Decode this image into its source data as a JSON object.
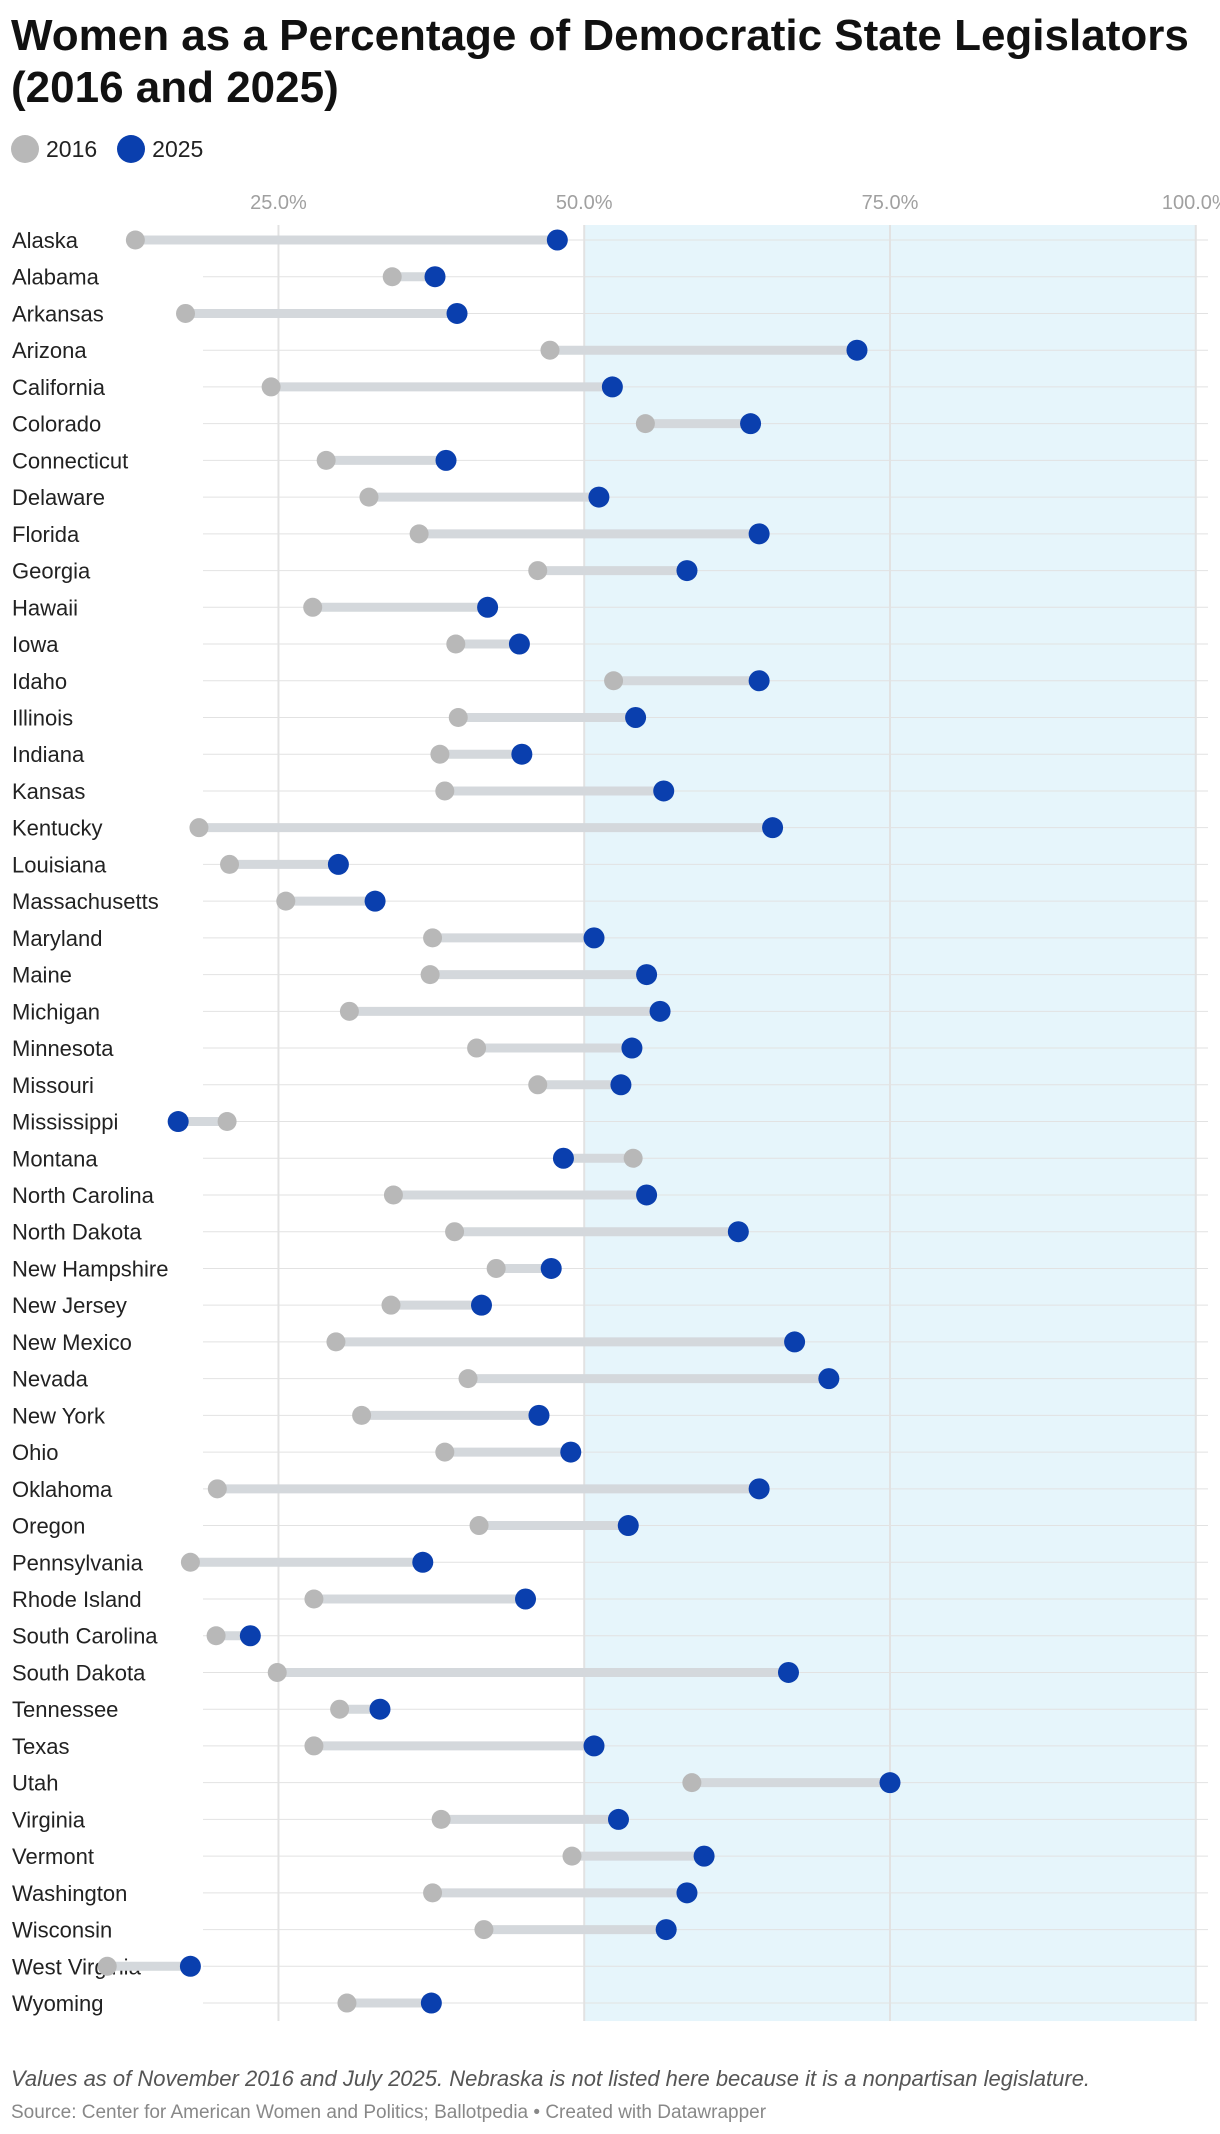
{
  "title": "Women as a Percentage of Democratic State Legislators (2016 and 2025)",
  "legend": [
    {
      "label": "2016",
      "color": "#b8b8b8"
    },
    {
      "label": "2025",
      "color": "#0a3fae"
    }
  ],
  "note": "Values as of November 2016 and July 2025. Nebraska is not listed here because it is a nonpartisan legislature.",
  "source": "Source: Center for American Women and Politics; Ballotpedia • Created with Datawrapper",
  "colors": {
    "v2016": "#b8b8b8",
    "v2025": "#0a3fae",
    "connector": "#d4d8dc",
    "highlight": "#e6f5fb",
    "grid": "#e2e2e2",
    "tick": "#a0a0a0"
  },
  "chart_data": {
    "type": "dot",
    "title": "Women as a Percentage of Democratic State Legislators (2016 and 2025)",
    "xlabel": "",
    "ylabel": "",
    "xlim": [
      10,
      101
    ],
    "x_ticks": [
      {
        "value": 25,
        "label": "25.0%"
      },
      {
        "value": 50,
        "label": "50.0%"
      },
      {
        "value": 75,
        "label": "75.0%"
      },
      {
        "value": 100,
        "label": "100.0%"
      }
    ],
    "highlight_range": [
      50,
      100
    ],
    "legend_position": "top-left",
    "grid": true,
    "series": [
      {
        "name": "2016",
        "key": "v2016"
      },
      {
        "name": "2025",
        "key": "v2025"
      }
    ],
    "rows": [
      {
        "state": "Alaska",
        "v2016": 13.3,
        "v2025": 47.8
      },
      {
        "state": "Alabama",
        "v2016": 34.3,
        "v2025": 37.8
      },
      {
        "state": "Arkansas",
        "v2016": 17.4,
        "v2025": 39.6
      },
      {
        "state": "Arizona",
        "v2016": 47.2,
        "v2025": 72.3
      },
      {
        "state": "California",
        "v2016": 24.4,
        "v2025": 52.3
      },
      {
        "state": "Colorado",
        "v2016": 55.0,
        "v2025": 63.6
      },
      {
        "state": "Connecticut",
        "v2016": 28.9,
        "v2025": 38.7
      },
      {
        "state": "Delaware",
        "v2016": 32.4,
        "v2025": 51.2
      },
      {
        "state": "Florida",
        "v2016": 36.5,
        "v2025": 64.3
      },
      {
        "state": "Georgia",
        "v2016": 46.2,
        "v2025": 58.4
      },
      {
        "state": "Hawaii",
        "v2016": 27.8,
        "v2025": 42.1
      },
      {
        "state": "Iowa",
        "v2016": 39.5,
        "v2025": 44.7
      },
      {
        "state": "Idaho",
        "v2016": 52.4,
        "v2025": 64.3
      },
      {
        "state": "Illinois",
        "v2016": 39.7,
        "v2025": 54.2
      },
      {
        "state": "Indiana",
        "v2016": 38.2,
        "v2025": 44.9
      },
      {
        "state": "Kansas",
        "v2016": 38.6,
        "v2025": 56.5
      },
      {
        "state": "Kentucky",
        "v2016": 18.5,
        "v2025": 65.4
      },
      {
        "state": "Louisiana",
        "v2016": 21.0,
        "v2025": 29.9
      },
      {
        "state": "Massachusetts",
        "v2016": 25.6,
        "v2025": 32.9
      },
      {
        "state": "Maryland",
        "v2016": 37.6,
        "v2025": 50.8
      },
      {
        "state": "Maine",
        "v2016": 37.4,
        "v2025": 55.1
      },
      {
        "state": "Michigan",
        "v2016": 30.8,
        "v2025": 56.2
      },
      {
        "state": "Minnesota",
        "v2016": 41.2,
        "v2025": 53.9
      },
      {
        "state": "Missouri",
        "v2016": 46.2,
        "v2025": 53.0
      },
      {
        "state": "Mississippi",
        "v2016": 20.8,
        "v2025": 16.8
      },
      {
        "state": "Montana",
        "v2016": 54.0,
        "v2025": 48.3
      },
      {
        "state": "North Carolina",
        "v2016": 34.4,
        "v2025": 55.1
      },
      {
        "state": "North Dakota",
        "v2016": 39.4,
        "v2025": 62.6
      },
      {
        "state": "New Hampshire",
        "v2016": 42.8,
        "v2025": 47.3
      },
      {
        "state": "New Jersey",
        "v2016": 34.2,
        "v2025": 41.6
      },
      {
        "state": "New Mexico",
        "v2016": 29.7,
        "v2025": 67.2
      },
      {
        "state": "Nevada",
        "v2016": 40.5,
        "v2025": 70.0
      },
      {
        "state": "New York",
        "v2016": 31.8,
        "v2025": 46.3
      },
      {
        "state": "Ohio",
        "v2016": 38.6,
        "v2025": 48.9
      },
      {
        "state": "Oklahoma",
        "v2016": 20.0,
        "v2025": 64.3
      },
      {
        "state": "Oregon",
        "v2016": 41.4,
        "v2025": 53.6
      },
      {
        "state": "Pennsylvania",
        "v2016": 17.8,
        "v2025": 36.8
      },
      {
        "state": "Rhode Island",
        "v2016": 27.9,
        "v2025": 45.2
      },
      {
        "state": "South Carolina",
        "v2016": 19.9,
        "v2025": 22.7
      },
      {
        "state": "South Dakota",
        "v2016": 24.9,
        "v2025": 66.7
      },
      {
        "state": "Tennessee",
        "v2016": 30.0,
        "v2025": 33.3
      },
      {
        "state": "Texas",
        "v2016": 27.9,
        "v2025": 50.8
      },
      {
        "state": "Utah",
        "v2016": 58.8,
        "v2025": 75.0
      },
      {
        "state": "Virginia",
        "v2016": 38.3,
        "v2025": 52.8
      },
      {
        "state": "Vermont",
        "v2016": 49.0,
        "v2025": 59.8
      },
      {
        "state": "Washington",
        "v2016": 37.6,
        "v2025": 58.4
      },
      {
        "state": "Wisconsin",
        "v2016": 41.8,
        "v2025": 56.7
      },
      {
        "state": "West Virginia",
        "v2016": 11.0,
        "v2025": 17.8
      },
      {
        "state": "Wyoming",
        "v2016": 30.6,
        "v2025": 37.5
      }
    ]
  }
}
